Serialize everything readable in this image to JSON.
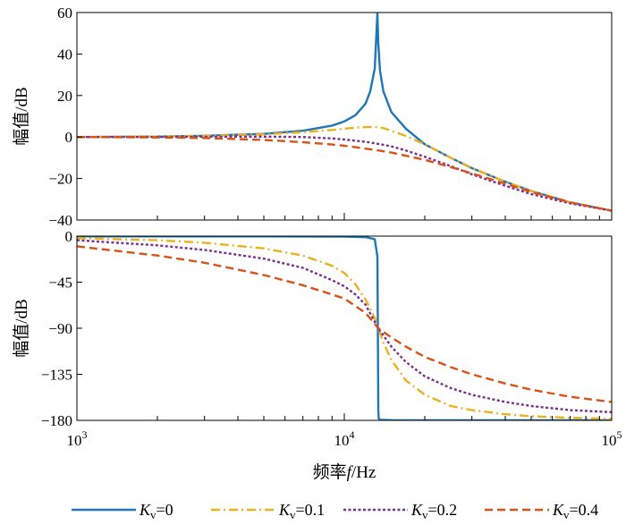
{
  "chart_data": {
    "type": "line",
    "x_scale": "log",
    "xlim": [
      1000,
      100000
    ],
    "x_ticks": [
      1000,
      10000,
      100000
    ],
    "x_tick_labels": [
      {
        "base": "10",
        "exp": "3"
      },
      {
        "base": "10",
        "exp": "4"
      },
      {
        "base": "10",
        "exp": "5"
      }
    ],
    "xlabel": {
      "prefix": "频率",
      "var": "f",
      "suffix": "/Hz"
    },
    "grid": false,
    "legend_placement": "bottom",
    "legend": [
      {
        "var": "K",
        "sub": "v",
        "text": "=0",
        "color": "#1f77b4",
        "dash": "solid"
      },
      {
        "var": "K",
        "sub": "v",
        "text": "=0.1",
        "color": "#edb120",
        "dash": "dashdot"
      },
      {
        "var": "K",
        "sub": "v",
        "text": "=0.2",
        "color": "#7e2f8e",
        "dash": "dotted"
      },
      {
        "var": "K",
        "sub": "v",
        "text": "=0.4",
        "color": "#d95319",
        "dash": "dashed"
      }
    ],
    "panels": [
      {
        "name": "magnitude",
        "ylabel": "幅值/dB",
        "ylim": [
          -40,
          60
        ],
        "y_ticks": [
          60,
          40,
          20,
          0,
          -20,
          -40
        ],
        "y_tick_labels": [
          "60",
          "40",
          "20",
          "0",
          "−20",
          "−40"
        ],
        "series": [
          {
            "legend": 0,
            "x": [
              1000,
              2000,
              3000,
              5000,
              7000,
              9000,
              10000,
              11000,
              12000,
              12500,
              13000,
              13300,
              13400,
              13600,
              14000,
              15000,
              17000,
              20000,
              25000,
              30000,
              40000,
              50000,
              70000,
              100000
            ],
            "y": [
              0,
              0.2,
              0.6,
              1.5,
              3.0,
              5.5,
              7.5,
              10.5,
              16,
              22,
              33,
              60,
              45,
              32,
              22,
              12,
              4,
              -3.5,
              -10,
              -15,
              -21.5,
              -26,
              -31.5,
              -35.5
            ]
          },
          {
            "legend": 1,
            "x": [
              1000,
              2000,
              3000,
              5000,
              7000,
              9000,
              10000,
              11000,
              12000,
              13000,
              14000,
              15000,
              17000,
              20000,
              25000,
              30000,
              40000,
              50000,
              70000,
              100000
            ],
            "y": [
              0,
              0.2,
              0.5,
              1.3,
              2.3,
              3.4,
              4.0,
              4.5,
              4.8,
              4.9,
              4.3,
              3.0,
              0.5,
              -3.5,
              -10,
              -15,
              -21.5,
              -26,
              -31.5,
              -35.5
            ]
          },
          {
            "legend": 2,
            "x": [
              1000,
              2000,
              3000,
              5000,
              7000,
              9000,
              10000,
              12000,
              13000,
              15000,
              17000,
              20000,
              25000,
              30000,
              40000,
              50000,
              70000,
              100000
            ],
            "y": [
              0,
              0,
              0.1,
              0.2,
              0,
              -0.7,
              -1.2,
              -2.3,
              -3.0,
              -4.5,
              -6.5,
              -9.5,
              -14,
              -18,
              -23.5,
              -27.5,
              -32,
              -35.5
            ]
          },
          {
            "legend": 3,
            "x": [
              1000,
              2000,
              3000,
              5000,
              7000,
              9000,
              10000,
              13000,
              15000,
              20000,
              25000,
              30000,
              40000,
              50000,
              70000,
              100000
            ],
            "y": [
              0,
              -0.2,
              -0.5,
              -1.4,
              -2.5,
              -3.6,
              -4.2,
              -6.2,
              -7.5,
              -11,
              -14.5,
              -17.5,
              -22.5,
              -26.5,
              -31.5,
              -35.5
            ]
          }
        ]
      },
      {
        "name": "phase",
        "ylabel": "幅值/dB",
        "ylim": [
          -180,
          0
        ],
        "y_ticks": [
          0,
          -45,
          -90,
          -135,
          -180
        ],
        "y_tick_labels": [
          "0",
          "−45",
          "−90",
          "−135",
          "−180"
        ],
        "series": [
          {
            "legend": 0,
            "x": [
              1000,
              5000,
              10000,
              12000,
              13000,
              13300,
              13350,
              13400,
              13450,
              13600,
              15000,
              30000,
              100000
            ],
            "y": [
              -0.2,
              -0.3,
              -0.5,
              -1,
              -3,
              -20,
              -90,
              -170,
              -178,
              -179.5,
              -179.8,
              -180,
              -180
            ]
          },
          {
            "legend": 1,
            "x": [
              1000,
              2000,
              3000,
              5000,
              7000,
              9000,
              10000,
              11000,
              12000,
              13000,
              13400,
              14000,
              15000,
              17000,
              20000,
              25000,
              30000,
              40000,
              50000,
              70000,
              100000
            ],
            "y": [
              -2,
              -4,
              -6.5,
              -12,
              -19,
              -29,
              -36,
              -47,
              -62,
              -80,
              -90,
              -104,
              -121,
              -141,
              -155,
              -166,
              -170,
              -174,
              -176,
              -177.5,
              -178.5
            ]
          },
          {
            "legend": 2,
            "x": [
              1000,
              2000,
              3000,
              5000,
              7000,
              9000,
              10000,
              11000,
              12000,
              13400,
              15000,
              17000,
              20000,
              25000,
              30000,
              40000,
              50000,
              70000,
              100000
            ],
            "y": [
              -4,
              -9,
              -13.5,
              -22,
              -31,
              -43,
              -49,
              -57,
              -67,
              -90,
              -108,
              -123,
              -137,
              -148.5,
              -155,
              -162,
              -166,
              -170,
              -172
            ]
          },
          {
            "legend": 3,
            "x": [
              1000,
              2000,
              3000,
              5000,
              7000,
              9000,
              10000,
              12000,
              13400,
              15000,
              17000,
              20000,
              25000,
              30000,
              40000,
              50000,
              70000,
              100000
            ],
            "y": [
              -10,
              -19,
              -26,
              -38,
              -48,
              -57,
              -61,
              -75,
              -90,
              -99,
              -108,
              -118,
              -128,
              -135,
              -144,
              -150,
              -157,
              -162
            ]
          }
        ]
      }
    ]
  }
}
